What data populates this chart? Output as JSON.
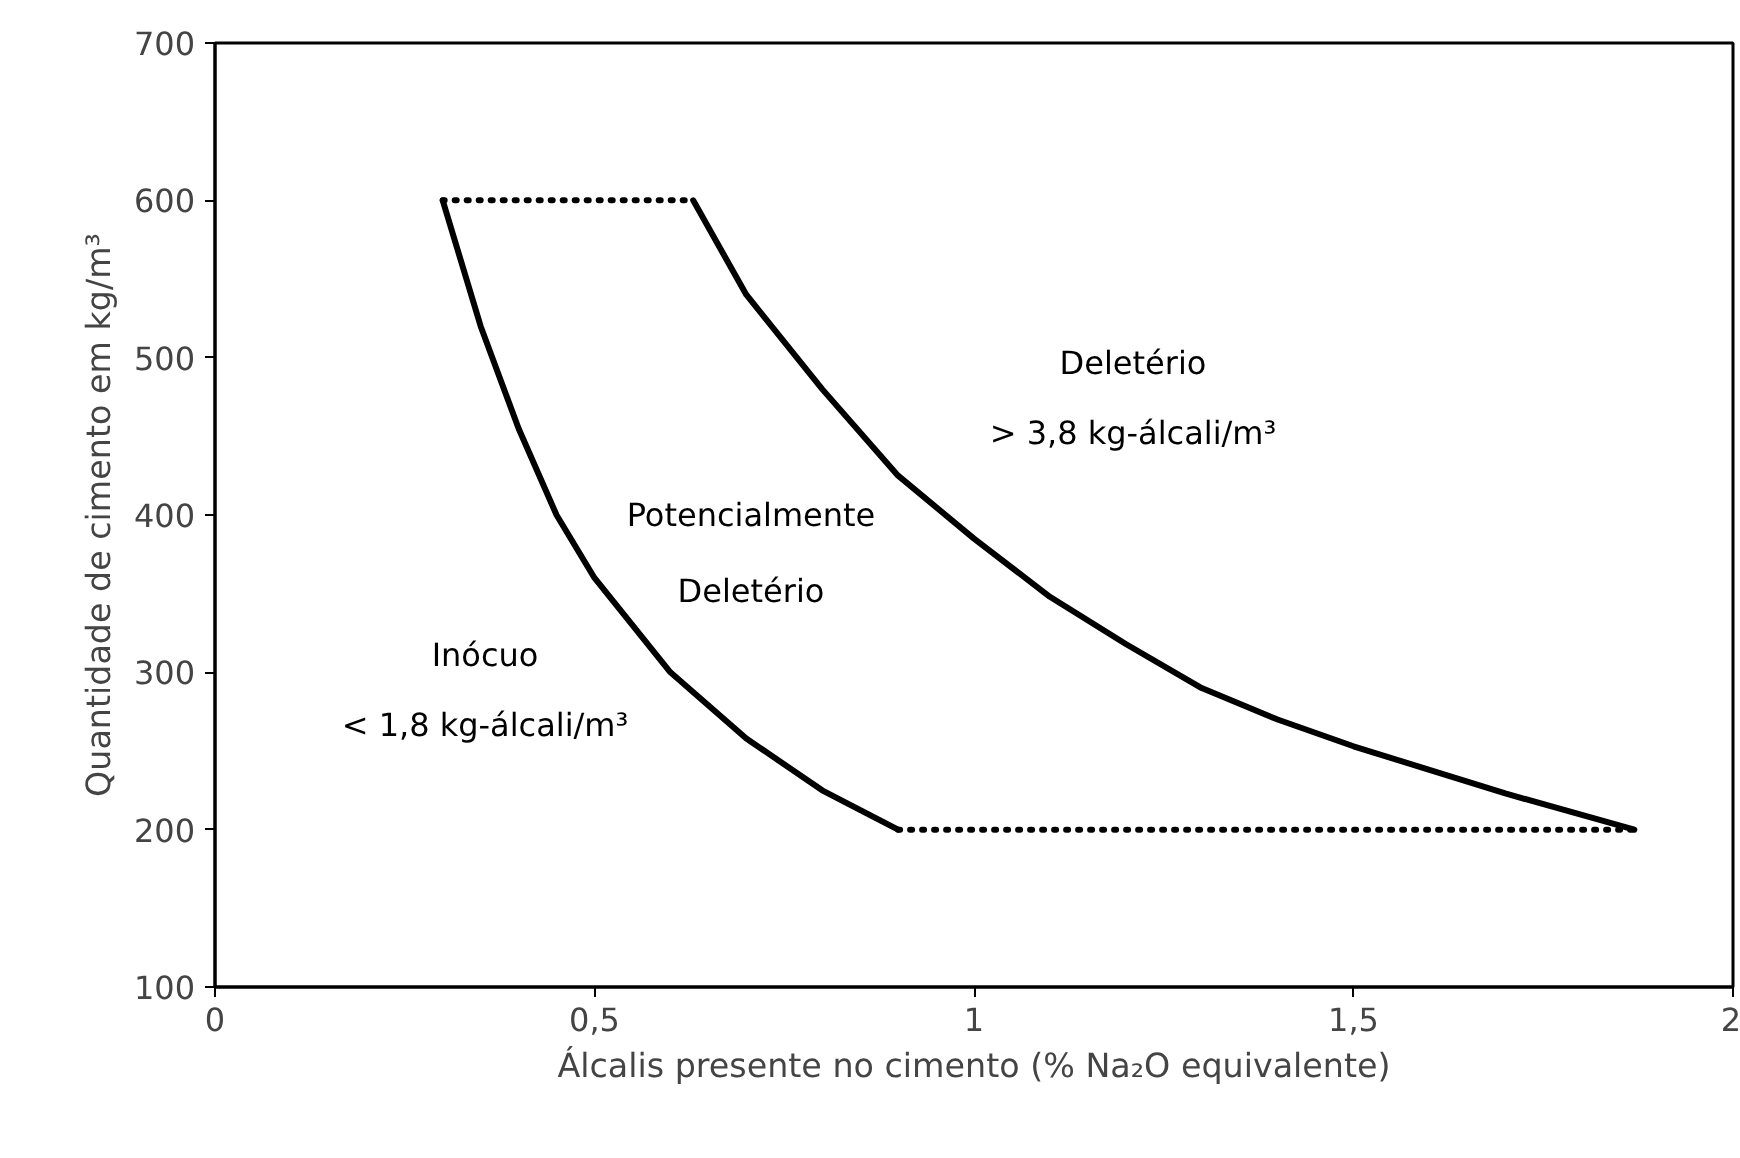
{
  "chart_data": {
    "type": "line",
    "xlabel": "Álcalis presente no cimento (% Na₂O equivalente)",
    "ylabel": "Quantidade de cimento em kg/m³",
    "xlim": [
      0,
      2
    ],
    "ylim": [
      100,
      700
    ],
    "xticks": [
      0,
      {
        "value": 0.5,
        "label": "0,5"
      },
      1,
      {
        "value": 1.5,
        "label": "1,5"
      },
      2
    ],
    "yticks": [
      100,
      200,
      300,
      400,
      500,
      600,
      700
    ],
    "series": [
      {
        "color": "#000000",
        "line_style": "solid",
        "x": [
          0.3,
          0.35,
          0.4,
          0.45,
          0.5,
          0.6,
          0.7,
          0.8,
          0.9
        ],
        "values": [
          600,
          520,
          455,
          400,
          360,
          300,
          258,
          225,
          200
        ]
      },
      {
        "color": "#000000",
        "line_style": "solid",
        "x": [
          0.63,
          0.7,
          0.8,
          0.9,
          1.0,
          1.1,
          1.2,
          1.3,
          1.4,
          1.5,
          1.6,
          1.7,
          1.87
        ],
        "values": [
          600,
          540,
          480,
          425,
          385,
          348,
          318,
          290,
          270,
          253,
          238,
          223,
          200
        ]
      },
      {
        "color": "#000000",
        "line_style": "dotted",
        "x": [
          0.3,
          0.63
        ],
        "values": [
          600,
          600
        ]
      },
      {
        "color": "#000000",
        "line_style": "dotted",
        "x": [
          0.9,
          1.87
        ],
        "values": [
          200,
          200
        ]
      }
    ],
    "annotations": [
      "Deletério",
      "> 3,8 kg-álcali/m³",
      "Potencialmente",
      "Deletério",
      "Inócuo",
      "< 1,8 kg-álcali/m³"
    ]
  }
}
